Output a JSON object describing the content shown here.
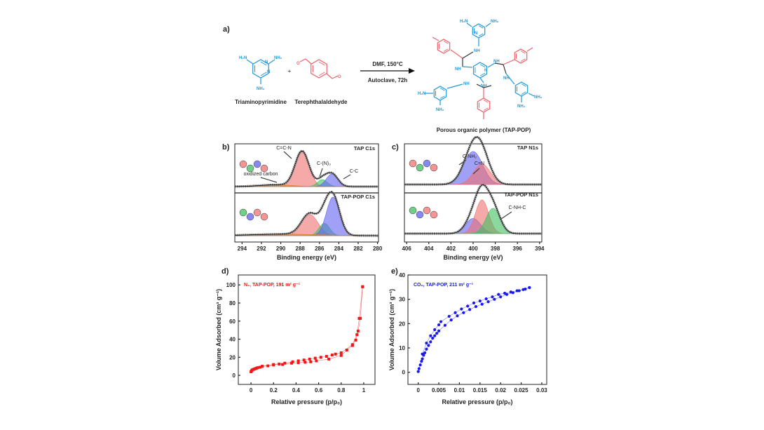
{
  "colors": {
    "amine_blue": "#1e9ad8",
    "aldehyde_red": "#f0606a",
    "n2_series": "#f01818",
    "co2_series": "#1a1af0",
    "peak_red": "#f07070",
    "peak_green": "#40c060",
    "peak_blue": "#6060f0",
    "peak_orange": "#e08020"
  },
  "panel_a": {
    "label": "a)",
    "reactant1": {
      "name": "Triaminopyrimidine",
      "atoms": {
        "h2n": "H₂N",
        "nh2": "NH₂",
        "n": "N"
      }
    },
    "plus": "+",
    "reactant2": {
      "name": "Terephthalaldehyde",
      "atoms": {
        "o": "O"
      }
    },
    "conditions_top": "DMF, 150°C",
    "conditions_bottom": "Autoclave, 72h",
    "product": {
      "name": "Porous organic polymer (TAP-POP)",
      "atoms": {
        "h2n": "H₂N",
        "nh2": "NH₂",
        "n": "N",
        "nh": "NH",
        "h": "H"
      }
    }
  },
  "chart_data": [
    {
      "id": "b",
      "panel_label": "b)",
      "type": "line",
      "xlabel": "Binding energy (eV)",
      "ylabel": "",
      "xlim": [
        295,
        280
      ],
      "x_reversed": true,
      "xticks": [
        294,
        292,
        290,
        288,
        286,
        284,
        282,
        280
      ],
      "subplots": [
        {
          "title": "TAP C1s",
          "inset_label": "oxidized carbon",
          "peaks": [
            {
              "label": "C=C-N",
              "center": 287.8,
              "amplitude": 1.0,
              "fwhm": 1.7,
              "color": "red"
            },
            {
              "label": "C-(N)₃",
              "center": 285.7,
              "amplitude": 0.2,
              "fwhm": 1.2,
              "color": "green"
            },
            {
              "label": "C-C",
              "center": 284.7,
              "amplitude": 0.36,
              "fwhm": 1.4,
              "color": "blue"
            },
            {
              "label": "oxidized carbon",
              "center": 290.5,
              "amplitude": 0.05,
              "fwhm": 4.0,
              "color": "orange"
            }
          ]
        },
        {
          "title": "TAP-POP C1s",
          "peaks": [
            {
              "label": "",
              "center": 287.0,
              "amplitude": 0.55,
              "fwhm": 2.0,
              "color": "red"
            },
            {
              "label": "",
              "center": 285.5,
              "amplitude": 0.32,
              "fwhm": 1.3,
              "color": "green"
            },
            {
              "label": "",
              "center": 284.6,
              "amplitude": 1.0,
              "fwhm": 1.6,
              "color": "blue"
            },
            {
              "label": "",
              "center": 289.5,
              "amplitude": 0.04,
              "fwhm": 8.0,
              "color": "orange"
            }
          ]
        }
      ]
    },
    {
      "id": "c",
      "panel_label": "c)",
      "type": "line",
      "xlabel": "Binding energy (eV)",
      "ylabel": "",
      "xlim": [
        406,
        394
      ],
      "x_reversed": true,
      "xticks": [
        406,
        404,
        402,
        400,
        398,
        396,
        394
      ],
      "subplots": [
        {
          "title": "TAP N1s",
          "peaks": [
            {
              "label": "C-NH₂",
              "center": 400.0,
              "amplitude": 1.0,
              "fwhm": 2.0,
              "color": "blue"
            },
            {
              "label": "C=N",
              "center": 399.2,
              "amplitude": 0.62,
              "fwhm": 1.8,
              "color": "red"
            }
          ]
        },
        {
          "title": "TAP-POP N1s",
          "peaks": [
            {
              "label": "",
              "center": 400.0,
              "amplitude": 0.45,
              "fwhm": 1.6,
              "color": "blue"
            },
            {
              "label": "",
              "center": 399.2,
              "amplitude": 1.0,
              "fwhm": 1.4,
              "color": "red"
            },
            {
              "label": "C-NH-C",
              "center": 398.2,
              "amplitude": 0.75,
              "fwhm": 1.5,
              "color": "green"
            }
          ]
        }
      ]
    },
    {
      "id": "d",
      "panel_label": "d)",
      "type": "scatter",
      "legend": "N₂, TAP-POP, 191 m² g⁻¹",
      "legend_position": "top-left",
      "xlabel": "Relative pressure (p/p₀)",
      "ylabel": "Volume Adsorbed (cm³ g⁻¹)",
      "xlim": [
        -0.1,
        1.1
      ],
      "ylim": [
        -10,
        110
      ],
      "xticks": [
        0,
        0.2,
        0.4,
        0.6,
        0.8,
        1
      ],
      "xtick_labels": [
        "0",
        "0.2",
        "0.4",
        "0.6",
        "0.8",
        "1"
      ],
      "yticks": [
        0,
        20,
        40,
        60,
        80,
        100
      ],
      "series": [
        {
          "branch": "adsorption",
          "x": [
            0,
            0.005,
            0.01,
            0.02,
            0.03,
            0.04,
            0.05,
            0.06,
            0.08,
            0.1,
            0.15,
            0.2,
            0.25,
            0.28,
            0.36,
            0.42,
            0.48,
            0.53,
            0.58,
            0.69,
            0.8,
            0.85,
            0.9,
            0.93,
            0.95,
            0.97,
            0.99
          ],
          "y": [
            4,
            5,
            6,
            6.5,
            7,
            7.5,
            8,
            8.5,
            9,
            10,
            10.5,
            11.5,
            12.5,
            12,
            13.5,
            14,
            14.5,
            15,
            16,
            18,
            22,
            28,
            33,
            39,
            49,
            63,
            98
          ]
        },
        {
          "branch": "desorption",
          "x": [
            0.99,
            0.96,
            0.94,
            0.9,
            0.8,
            0.75,
            0.72,
            0.67,
            0.62,
            0.57,
            0.52,
            0.47,
            0.42,
            0.37,
            0.3,
            0.2,
            0.1
          ],
          "y": [
            98,
            63,
            45,
            34,
            25,
            23.5,
            22.5,
            21,
            20,
            19,
            18,
            17,
            16,
            15,
            13.5,
            12,
            10
          ]
        }
      ]
    },
    {
      "id": "e",
      "panel_label": "e)",
      "type": "scatter",
      "legend": "CO₂, TAP-POP, 211 m² g⁻¹",
      "legend_position": "top-left",
      "xlabel": "Relative pressure (p/p₀)",
      "ylabel": "Volume Adsorbed (cm³ g⁻¹)",
      "xlim": [
        -0.003,
        0.03
      ],
      "ylim": [
        -5,
        40
      ],
      "xticks": [
        0,
        0.005,
        0.01,
        0.015,
        0.02,
        0.025,
        0.03
      ],
      "xtick_labels": [
        "0",
        "0.005",
        "0.01",
        "0.015",
        "0.02",
        "0.025",
        "0.03"
      ],
      "yticks": [
        0,
        10,
        20,
        30,
        40
      ],
      "series": [
        {
          "branch": "adsorption",
          "x": [
            0,
            0.0002,
            0.0005,
            0.0008,
            0.001,
            0.0013,
            0.0016,
            0.002,
            0.0025,
            0.003,
            0.0035,
            0.004,
            0.0045,
            0.005,
            0.0065,
            0.008,
            0.0095,
            0.011,
            0.0125,
            0.014,
            0.0155,
            0.017,
            0.0185,
            0.02,
            0.0215,
            0.023,
            0.0245,
            0.026,
            0.027
          ],
          "y": [
            0.3,
            1.5,
            3,
            4.5,
            5.5,
            7,
            8,
            9.5,
            11,
            12.5,
            14,
            15,
            16,
            17,
            19.3,
            21.5,
            23.2,
            24.5,
            25.8,
            27,
            28,
            29,
            30,
            31,
            32,
            32.7,
            33.5,
            34.2,
            34.8
          ]
        },
        {
          "branch": "desorption",
          "x": [
            0.027,
            0.0255,
            0.024,
            0.0225,
            0.021,
            0.0195,
            0.018,
            0.0165,
            0.015,
            0.0135,
            0.012,
            0.0105,
            0.009,
            0.0075,
            0.0055,
            0.005,
            0.004,
            0.003,
            0.002,
            0.001
          ],
          "y": [
            34.8,
            34,
            33.5,
            33,
            32.5,
            32,
            31,
            30.2,
            29.3,
            28.5,
            27.2,
            26,
            24.5,
            23,
            20.8,
            19.5,
            17.5,
            15,
            12,
            7.5
          ]
        }
      ]
    }
  ]
}
